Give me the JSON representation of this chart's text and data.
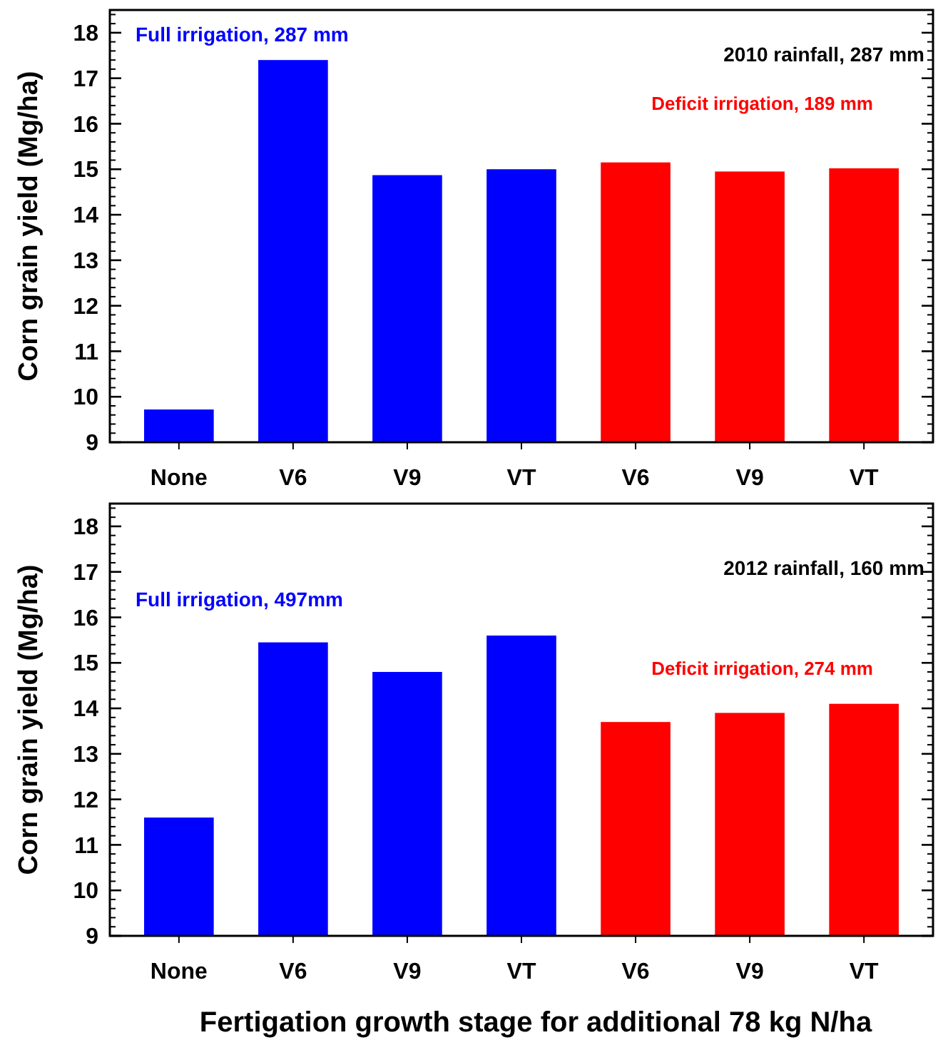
{
  "chart_data": [
    {
      "type": "bar",
      "categories": [
        "None",
        "V6",
        "V9",
        "VT",
        "V6",
        "V9",
        "VT"
      ],
      "values": [
        9.72,
        17.4,
        14.87,
        15.0,
        15.15,
        14.95,
        15.02
      ],
      "colors": [
        "#0000ff",
        "#0000ff",
        "#0000ff",
        "#0000ff",
        "#ff0000",
        "#ff0000",
        "#ff0000"
      ],
      "ylabel": "Corn grain yield (Mg/ha)",
      "ylim": [
        9,
        18.5
      ],
      "yticks": [
        9,
        10,
        11,
        12,
        13,
        14,
        15,
        16,
        17,
        18
      ],
      "annotations": [
        "2010 rainfall, 287 mm",
        "Full irrigation, 287 mm",
        "Deficit irrigation, 189 mm"
      ]
    },
    {
      "type": "bar",
      "categories": [
        "None",
        "V6",
        "V9",
        "VT",
        "V6",
        "V9",
        "VT"
      ],
      "values": [
        11.6,
        15.45,
        14.8,
        15.6,
        13.7,
        13.9,
        14.1
      ],
      "colors": [
        "#0000ff",
        "#0000ff",
        "#0000ff",
        "#0000ff",
        "#ff0000",
        "#ff0000",
        "#ff0000"
      ],
      "ylabel": "Corn grain yield (Mg/ha)",
      "xlabel": "Fertigation growth stage for additional 78 kg N/ha",
      "ylim": [
        9,
        18.5
      ],
      "yticks": [
        9,
        10,
        11,
        12,
        13,
        14,
        15,
        16,
        17,
        18
      ],
      "annotations": [
        "2012 rainfall, 160 mm",
        "Full irrigation, 497mm",
        "Deficit irrigation, 274 mm"
      ]
    }
  ]
}
